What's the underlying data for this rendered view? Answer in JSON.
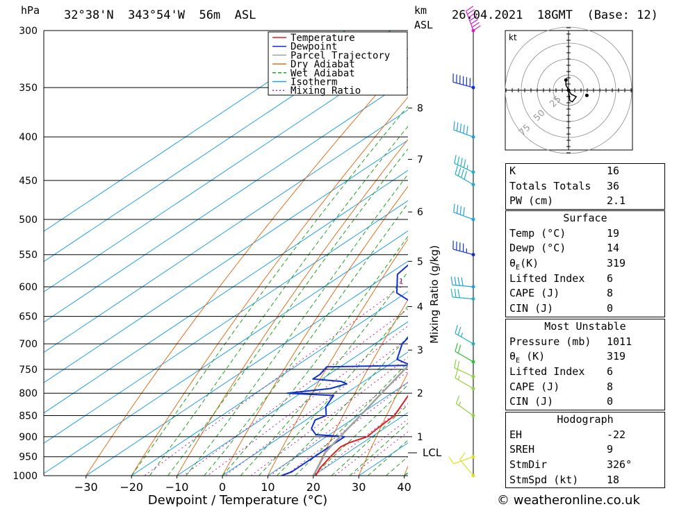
{
  "header": {
    "pressure_unit": "hPa",
    "location": "32°38'N  343°54'W  56m  ASL",
    "km_unit": "km",
    "asl_label": "ASL",
    "datetime": "26.04.2021  18GMT  (Base: 12)"
  },
  "chart_data": {
    "type": "skew-t",
    "xlabel": "Dewpoint / Temperature (°C)",
    "right_axis_label": "Mixing Ratio (g/kg)",
    "pressure_levels": [
      300,
      350,
      400,
      450,
      500,
      550,
      600,
      650,
      700,
      750,
      800,
      850,
      900,
      950,
      1000
    ],
    "temp_ticks": [
      -30,
      -20,
      -10,
      0,
      10,
      20,
      30,
      40
    ],
    "temp_range": [
      -40,
      40
    ],
    "pressure_range": [
      300,
      1000
    ],
    "height_ticks_km": [
      {
        "km": "1",
        "p": 900
      },
      {
        "km": "2",
        "p": 800
      },
      {
        "km": "3",
        "p": 712
      },
      {
        "km": "4",
        "p": 633
      },
      {
        "km": "5",
        "p": 560
      },
      {
        "km": "6",
        "p": 490
      },
      {
        "km": "7",
        "p": 425
      },
      {
        "km": "8",
        "p": 370
      }
    ],
    "lcl_label": "LCL",
    "lcl_pressure": 940,
    "mixing_ratio_labels": [
      "1",
      "2",
      "3",
      "4",
      "6",
      "8",
      "10",
      "15",
      "20",
      "25"
    ],
    "mixing_ratio_values": [
      1,
      2,
      3,
      4,
      6,
      8,
      10,
      15,
      20,
      25
    ],
    "legend": [
      "Temperature",
      "Dewpoint",
      "Parcel Trajectory",
      "Dry Adiabat",
      "Wet Adiabat",
      "Isotherm",
      "Mixing Ratio"
    ],
    "colors": {
      "temperature": "#e02020",
      "dewpoint": "#1030d0",
      "parcel": "#a0a0a0",
      "dry_adiabat": "#e07020",
      "wet_adiabat": "#20a020",
      "isotherm": "#20a0e0",
      "mixing_ratio": "#c020a0"
    },
    "series": [
      {
        "name": "Temperature",
        "points": [
          [
            1000,
            20.5
          ],
          [
            980,
            19
          ],
          [
            950,
            17.5
          ],
          [
            925,
            16.5
          ],
          [
            915,
            17
          ],
          [
            900,
            19
          ],
          [
            880,
            18.5
          ],
          [
            850,
            18
          ],
          [
            800,
            14
          ],
          [
            750,
            11
          ],
          [
            700,
            6
          ],
          [
            650,
            1.5
          ],
          [
            620,
            -2
          ],
          [
            600,
            -3
          ],
          [
            590,
            -3
          ],
          [
            550,
            -7
          ],
          [
            520,
            -10.5
          ],
          [
            500,
            -13
          ],
          [
            480,
            -16
          ],
          [
            460,
            -19
          ],
          [
            450,
            -20.5
          ],
          [
            400,
            -26.5
          ],
          [
            350,
            -33
          ],
          [
            300,
            -42
          ]
        ]
      },
      {
        "name": "Dewpoint",
        "points": [
          [
            1000,
            13
          ],
          [
            990,
            14
          ],
          [
            950,
            14
          ],
          [
            900,
            14
          ],
          [
            895,
            7
          ],
          [
            880,
            4
          ],
          [
            860,
            2
          ],
          [
            850,
            3
          ],
          [
            830,
            0
          ],
          [
            805,
            -2
          ],
          [
            800,
            -13
          ],
          [
            795,
            -9
          ],
          [
            790,
            -5
          ],
          [
            780,
            -3
          ],
          [
            775,
            -5
          ],
          [
            770,
            -12
          ],
          [
            760,
            -12
          ],
          [
            745,
            -13
          ],
          [
            742,
            5
          ],
          [
            730,
            0
          ],
          [
            700,
            -4
          ],
          [
            660,
            -6.5
          ],
          [
            640,
            -10
          ],
          [
            610,
            -22
          ],
          [
            580,
            -28
          ],
          [
            540,
            -30
          ],
          [
            510,
            -15
          ],
          [
            505,
            -30
          ],
          [
            495,
            -27
          ],
          [
            480,
            -25
          ],
          [
            470,
            -33
          ],
          [
            455,
            -27
          ],
          [
            445,
            -28
          ],
          [
            400,
            -30
          ],
          [
            350,
            -40
          ],
          [
            300,
            -43
          ]
        ]
      },
      {
        "name": "Parcel Trajectory",
        "points": [
          [
            1000,
            20
          ],
          [
            950,
            16
          ],
          [
            940,
            15
          ],
          [
            900,
            13
          ],
          [
            850,
            10.5
          ],
          [
            800,
            7.8
          ],
          [
            750,
            5
          ],
          [
            700,
            1.8
          ],
          [
            650,
            -1.5
          ],
          [
            600,
            -5.2
          ],
          [
            550,
            -9.5
          ],
          [
            500,
            -14.5
          ],
          [
            450,
            -20.5
          ],
          [
            400,
            -27.5
          ],
          [
            350,
            -36
          ],
          [
            300,
            -46
          ]
        ]
      }
    ],
    "hodograph": {
      "unit": "kt",
      "ring_labels": [
        "25",
        "50",
        "75"
      ],
      "trace": [
        [
          0,
          0
        ],
        [
          1,
          -8
        ],
        [
          3,
          -9
        ],
        [
          6,
          -5
        ],
        [
          2,
          -3
        ],
        [
          -2,
          4
        ],
        [
          -2,
          8
        ]
      ],
      "storm_motion": [
        9.5,
        -4
      ]
    },
    "wind_profile": [
      {
        "p": 300,
        "dir": 340,
        "spd": 70,
        "color": "#d020d0"
      },
      {
        "p": 350,
        "dir": 285,
        "spd": 65,
        "color": "#1030d0"
      },
      {
        "p": 400,
        "dir": 290,
        "spd": 50,
        "color": "#20a0e0"
      },
      {
        "p": 440,
        "dir": 295,
        "spd": 45,
        "color": "#20b0c0"
      },
      {
        "p": 455,
        "dir": 300,
        "spd": 40,
        "color": "#20b0c0"
      },
      {
        "p": 500,
        "dir": 290,
        "spd": 40,
        "color": "#20a0e0"
      },
      {
        "p": 550,
        "dir": 285,
        "spd": 45,
        "color": "#1030d0"
      },
      {
        "p": 600,
        "dir": 275,
        "spd": 40,
        "color": "#20a0e0"
      },
      {
        "p": 620,
        "dir": 275,
        "spd": 30,
        "color": "#20b0c0"
      },
      {
        "p": 700,
        "dir": 300,
        "spd": 25,
        "color": "#20b0c0"
      },
      {
        "p": 735,
        "dir": 300,
        "spd": 20,
        "color": "#30c030"
      },
      {
        "p": 765,
        "dir": 295,
        "spd": 20,
        "color": "#90d040"
      },
      {
        "p": 790,
        "dir": 300,
        "spd": 15,
        "color": "#90d040"
      },
      {
        "p": 850,
        "dir": 305,
        "spd": 15,
        "color": "#90d040"
      },
      {
        "p": 950,
        "dir": 250,
        "spd": 10,
        "color": "#e0e020"
      },
      {
        "p": 1000,
        "dir": 320,
        "spd": 10,
        "color": "#e0e020"
      }
    ]
  },
  "indices": {
    "k_label": "K",
    "k_value": "16",
    "tt_label": "Totals Totals",
    "tt_value": "36",
    "pw_label": "PW (cm)",
    "pw_value": "2.1"
  },
  "surface": {
    "title": "Surface",
    "temp_label": "Temp (°C)",
    "temp_value": "19",
    "dewp_label": "Dewp (°C)",
    "dewp_value": "14",
    "theta_label": "θ",
    "theta_sub": "E",
    "theta_unit": "(K)",
    "theta_value": "319",
    "li_label": "Lifted Index",
    "li_value": "6",
    "cape_label": "CAPE (J)",
    "cape_value": "8",
    "cin_label": "CIN (J)",
    "cin_value": "0"
  },
  "most_unstable": {
    "title": "Most Unstable",
    "pressure_label": "Pressure (mb)",
    "pressure_value": "1011",
    "theta_label": "θ",
    "theta_sub": "E",
    "theta_unit": "(K)",
    "theta_value": "319",
    "li_label": "Lifted Index",
    "li_value": "6",
    "cape_label": "CAPE (J)",
    "cape_value": "8",
    "cin_label": "CIN (J)",
    "cin_value": "0"
  },
  "hodograph_stats": {
    "title": "Hodograph",
    "eh_label": "EH",
    "eh_value": "-22",
    "sreh_label": "SREH",
    "sreh_value": "9",
    "stmdir_label": "StmDir",
    "stmdir_value": "326°",
    "stmspd_label": "StmSpd (kt)",
    "stmspd_value": "18"
  },
  "footer": {
    "copyright": "© weatheronline.co.uk"
  }
}
